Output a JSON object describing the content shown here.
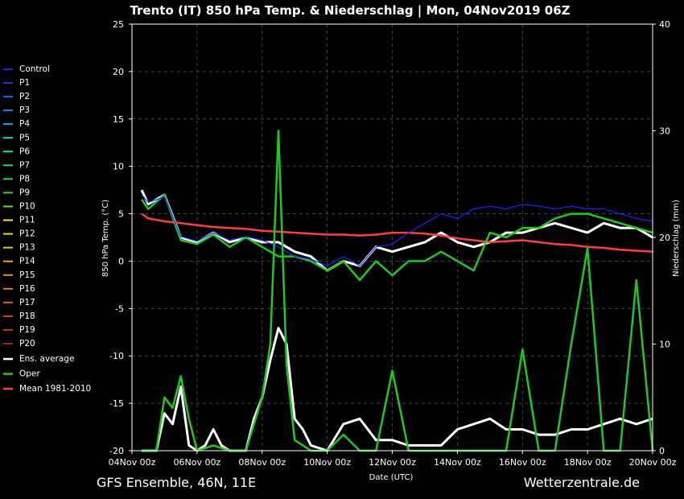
{
  "chart_data": {
    "type": "line",
    "title": "Trento  (IT)  850 hPa Temp. & Niederschlag | Mon, 04Nov2019 06Z",
    "ylabel_left": "850 hPa Temp. (°C)",
    "ylabel_right": "Niederschlag (mm)",
    "xlabel": "Date (UTC)",
    "x_ticks": [
      "04Nov 00z",
      "06Nov 00z",
      "08Nov 00z",
      "10Nov 00z",
      "12Nov 00z",
      "14Nov 00z",
      "16Nov 00z",
      "18Nov 00z",
      "20Nov 00z"
    ],
    "x_range_days": [
      0,
      16
    ],
    "ylim_left": [
      -20,
      25
    ],
    "y_ticks_left": [
      -20,
      -15,
      -10,
      -5,
      0,
      5,
      10,
      15,
      20,
      25
    ],
    "ylim_right": [
      0,
      40
    ],
    "y_ticks_right": [
      0,
      10,
      20,
      30,
      40
    ],
    "grid": true,
    "legend_position": "left",
    "legend": [
      {
        "name": "Control",
        "color": "#2020ff"
      },
      {
        "name": "P1",
        "color": "#1838e8"
      },
      {
        "name": "P2",
        "color": "#1e60f0"
      },
      {
        "name": "P3",
        "color": "#1888e0"
      },
      {
        "name": "P4",
        "color": "#20a8e8"
      },
      {
        "name": "P5",
        "color": "#20d0d8"
      },
      {
        "name": "P6",
        "color": "#20e0a0"
      },
      {
        "name": "P7",
        "color": "#20e070"
      },
      {
        "name": "P8",
        "color": "#20d850"
      },
      {
        "name": "P9",
        "color": "#20e030"
      },
      {
        "name": "P10",
        "color": "#60e020"
      },
      {
        "name": "P11",
        "color": "#f0f020"
      },
      {
        "name": "P12",
        "color": "#f0d820"
      },
      {
        "name": "P13",
        "color": "#f0c020"
      },
      {
        "name": "P14",
        "color": "#f0a820"
      },
      {
        "name": "P15",
        "color": "#f09020"
      },
      {
        "name": "P16",
        "color": "#e87820"
      },
      {
        "name": "P17",
        "color": "#e06020"
      },
      {
        "name": "P18",
        "color": "#d84820"
      },
      {
        "name": "P19",
        "color": "#c83020"
      },
      {
        "name": "P20",
        "color": "#b02018"
      },
      {
        "name": "Ens. average",
        "color": "#ffffff"
      },
      {
        "name": "Oper",
        "color": "#20c820"
      },
      {
        "name": "Mean 1981-2010",
        "color": "#ff4040"
      }
    ],
    "series_temperature": [
      {
        "name": "Ens. average",
        "x": [
          0.3,
          0.5,
          1,
          1.5,
          2,
          2.5,
          3,
          3.5,
          4,
          4.5,
          5,
          5.5,
          6,
          6.5,
          7,
          7.5,
          8,
          8.5,
          9,
          9.5,
          10,
          10.5,
          11,
          11.5,
          12,
          12.5,
          13,
          13.5,
          14,
          14.5,
          15,
          15.5,
          16
        ],
        "y": [
          7.5,
          6,
          7,
          2.5,
          2,
          3,
          2,
          2.5,
          2,
          2,
          1,
          0.5,
          -1,
          0,
          -0.5,
          1.5,
          1,
          1.5,
          2,
          3,
          2,
          1.5,
          2,
          3,
          3,
          3.5,
          4,
          3.5,
          3,
          4,
          3.5,
          3.5,
          2.5
        ]
      },
      {
        "name": "Mean 1981-2010",
        "x": [
          0.3,
          0.5,
          1,
          1.5,
          2,
          2.5,
          3,
          3.5,
          4,
          4.5,
          5,
          5.5,
          6,
          6.5,
          7,
          7.5,
          8,
          8.5,
          9,
          9.5,
          10,
          10.5,
          11,
          11.5,
          12,
          12.5,
          13,
          13.5,
          14,
          14.5,
          15,
          15.5,
          16
        ],
        "y": [
          5,
          4.5,
          4.2,
          4,
          3.8,
          3.6,
          3.5,
          3.4,
          3.2,
          3.1,
          3,
          2.9,
          2.8,
          2.8,
          2.7,
          2.8,
          3,
          3,
          2.9,
          2.7,
          2.4,
          2.2,
          2,
          2.1,
          2.2,
          2,
          1.8,
          1.7,
          1.5,
          1.4,
          1.2,
          1.1,
          1
        ]
      },
      {
        "name": "Oper",
        "x": [
          0.3,
          0.5,
          1,
          1.5,
          2,
          2.5,
          3,
          3.5,
          4,
          4.5,
          5,
          5.5,
          6,
          6.5,
          7,
          7.5,
          8,
          8.5,
          9,
          9.5,
          10,
          10.5,
          11,
          11.5,
          12,
          12.5,
          13,
          13.5,
          14,
          14.5,
          15,
          15.5,
          16
        ],
        "y": [
          6.5,
          5.5,
          7,
          2.2,
          1.8,
          2.8,
          1.5,
          2.5,
          1.5,
          0.5,
          0.5,
          0,
          -1,
          0,
          -2,
          0,
          -1.5,
          0,
          0,
          1,
          0,
          -1,
          3,
          2.5,
          3.5,
          3.5,
          4.5,
          5,
          5,
          4.5,
          4,
          3.5,
          3
        ]
      },
      {
        "name": "Control",
        "x": [
          0.3,
          0.5,
          1,
          1.5,
          2,
          2.5,
          3,
          3.5,
          4,
          4.5,
          5,
          5.5,
          6,
          6.5,
          7,
          7.5,
          8,
          8.5,
          9,
          9.5,
          10,
          10.5,
          11,
          11.5,
          12,
          12.5,
          13,
          13.5,
          14,
          14.5,
          15,
          15.5,
          16
        ],
        "y": [
          7,
          6.2,
          6.8,
          2.6,
          2.1,
          3,
          2.2,
          2.6,
          2.2,
          1.5,
          0.5,
          0.2,
          -0.5,
          0.5,
          -0.5,
          1.5,
          1.8,
          3,
          4,
          5,
          4.5,
          5.5,
          5.8,
          5.5,
          6,
          5.8,
          5.5,
          5.8,
          5.5,
          5.5,
          5,
          4.5,
          4.2
        ]
      }
    ],
    "series_precipitation": [
      {
        "name": "Ens. average",
        "x": [
          0.3,
          0.75,
          1,
          1.25,
          1.5,
          1.75,
          2,
          2.25,
          2.5,
          2.75,
          3,
          3.25,
          3.5,
          3.75,
          4,
          4.25,
          4.5,
          4.75,
          5,
          5.25,
          5.5,
          6,
          6.5,
          7,
          7.5,
          8,
          8.5,
          9,
          9.5,
          10,
          10.5,
          11,
          11.5,
          12,
          12.5,
          13,
          13.5,
          14,
          14.5,
          15,
          15.5,
          16
        ],
        "y": [
          0,
          0,
          3.5,
          2.5,
          6,
          0.5,
          0,
          0.5,
          2,
          0.5,
          0,
          0,
          0,
          3,
          5,
          8.5,
          11.5,
          10,
          3,
          2,
          0.5,
          0,
          2.5,
          3,
          1,
          1,
          0.5,
          0.5,
          0.5,
          2,
          2.5,
          3,
          2,
          2,
          1.5,
          1.5,
          2,
          2,
          2.5,
          3,
          2.5,
          3
        ]
      },
      {
        "name": "Oper",
        "x": [
          0.3,
          0.75,
          1,
          1.25,
          1.5,
          1.75,
          2,
          2.5,
          3,
          3.5,
          4,
          4.25,
          4.5,
          4.75,
          5,
          5.5,
          6,
          6.5,
          7,
          7.5,
          8,
          8.5,
          9,
          9.5,
          10,
          10.5,
          11,
          11.5,
          12,
          12.5,
          13,
          13.5,
          14,
          14.5,
          15,
          15.5,
          16
        ],
        "y": [
          0,
          0,
          5,
          4,
          7,
          3,
          0,
          0.5,
          0,
          0,
          5,
          10,
          30,
          8,
          1,
          0,
          0,
          1.5,
          0,
          0,
          7.5,
          0,
          0,
          0,
          0,
          0,
          0,
          0,
          9.5,
          0,
          0,
          10,
          19,
          0,
          0,
          16,
          0
        ]
      }
    ],
    "footer_left": "GFS Ensemble, 46N, 11E",
    "footer_right": "Wetterzentrale.de"
  }
}
